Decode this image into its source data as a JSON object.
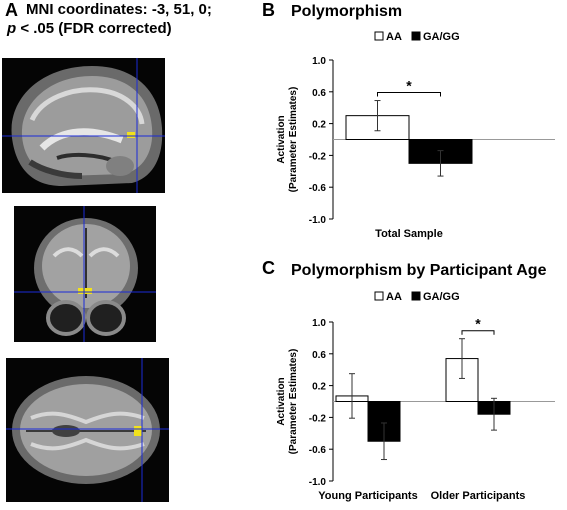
{
  "panel_a": {
    "letter": "A",
    "line1": "MNI coordinates: -3, 51, 0;",
    "line2_italic": "p",
    "line2_rest": " < .05 (FDR corrected)",
    "views": [
      "sagittal",
      "coronal",
      "axial"
    ],
    "crosshair_color": "#1a2ad8",
    "activation_color": "#f2e21a"
  },
  "panel_b": {
    "letter": "B",
    "title": "Polymorphism"
  },
  "panel_c": {
    "letter": "C",
    "title": "Polymorphism by Participant Age"
  },
  "chart_data": [
    {
      "type": "bar",
      "title": "Polymorphism",
      "categories": [
        "Total Sample"
      ],
      "series": [
        {
          "name": "AA",
          "values": [
            0.3
          ],
          "error": [
            0.19
          ],
          "fill": "#ffffff"
        },
        {
          "name": "GA/GG",
          "values": [
            -0.3
          ],
          "error": [
            0.16
          ],
          "fill": "#000000"
        }
      ],
      "xlabel": "",
      "ylabel": "Activation (Parameter Estimates)",
      "ylim": [
        -1.0,
        1.0
      ],
      "yticks": [
        "1.0",
        "0.6",
        "0.2",
        "-0.2",
        "-0.6",
        "-1.0"
      ],
      "significance": [
        {
          "category": "Total Sample",
          "label": "*"
        }
      ],
      "legend": "top",
      "grid": false
    },
    {
      "type": "bar",
      "title": "Polymorphism by Participant Age",
      "categories": [
        "Young Participants",
        "Older Participants"
      ],
      "series": [
        {
          "name": "AA",
          "values": [
            0.07,
            0.54
          ],
          "error": [
            0.28,
            0.25
          ],
          "fill": "#ffffff"
        },
        {
          "name": "GA/GG",
          "values": [
            -0.5,
            -0.16
          ],
          "error": [
            0.23,
            0.2
          ],
          "fill": "#000000"
        }
      ],
      "xlabel": "",
      "ylabel": "Activation (Parameter Estimates)",
      "ylim": [
        -1.0,
        1.0
      ],
      "yticks": [
        "1.0",
        "0.6",
        "0.2",
        "-0.2",
        "-0.6",
        "-1.0"
      ],
      "significance": [
        {
          "category": "Older Participants",
          "label": "*"
        }
      ],
      "legend": "top",
      "grid": false
    }
  ]
}
